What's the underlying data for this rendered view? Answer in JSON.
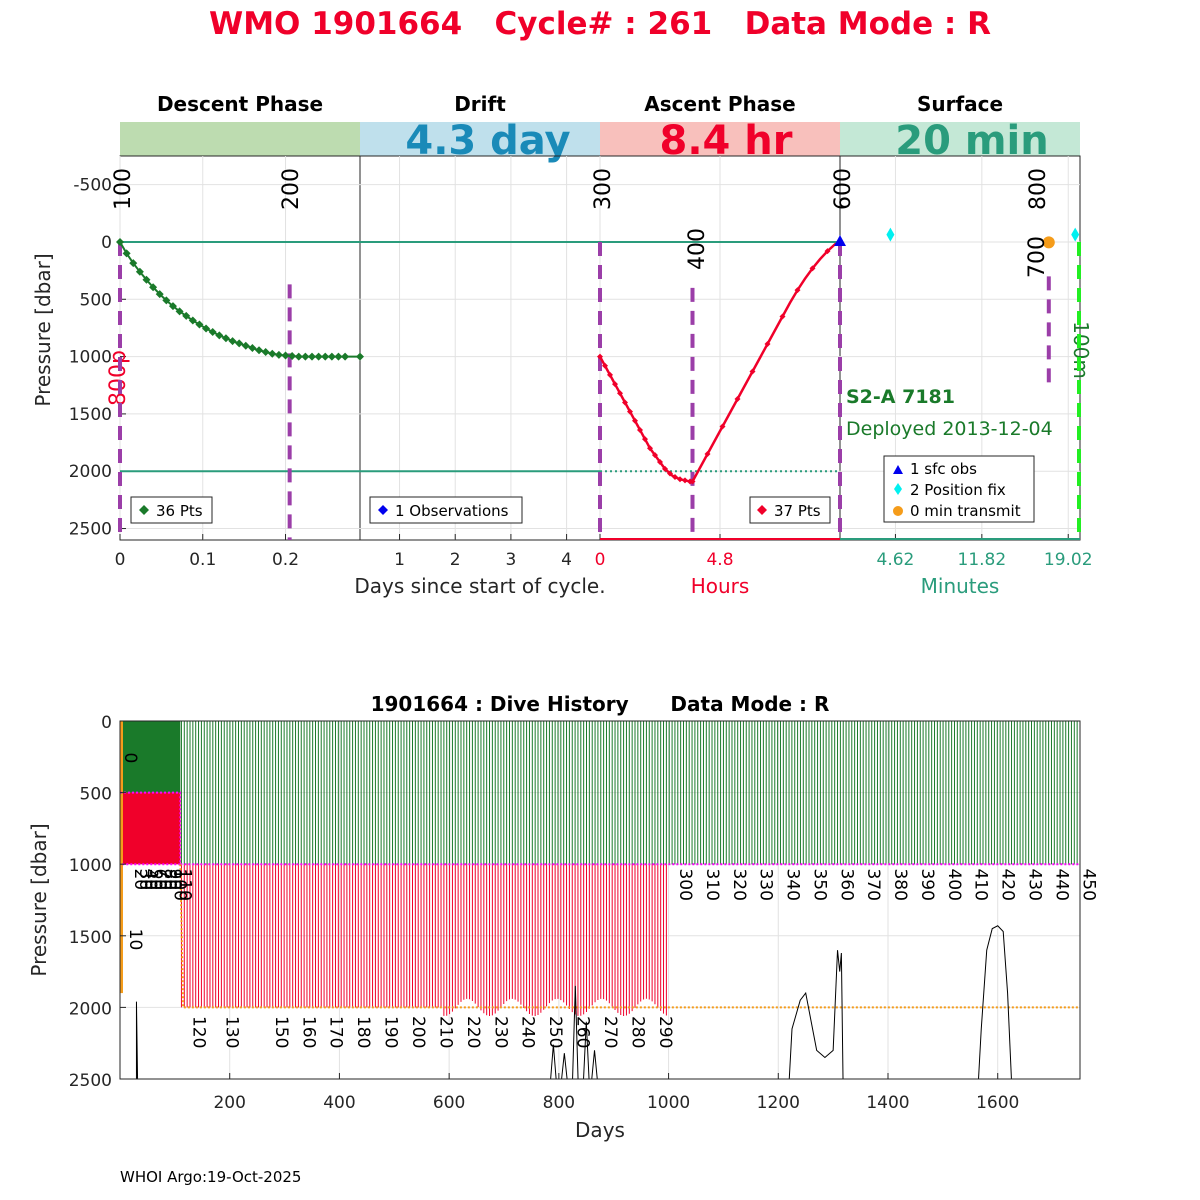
{
  "title": "WMO 1901664   Cycle# : 261   Data Mode : R",
  "footer": "WHOI Argo:19-Oct-2025",
  "colors": {
    "title": "#f0002a",
    "descent": "#1a7a2a",
    "ascent": "#f0002a",
    "phase_line": "#9b3ea8",
    "hline": "#2a9c7c",
    "drift_bar": "#bfe0ec",
    "descent_bar": "#bddcb0",
    "ascent_bar": "#f8c0bc",
    "surface_bar": "#c4e8d6"
  },
  "chart_data": [
    {
      "type": "line",
      "panel": "cycle",
      "ylabel": "Pressure [dbar]",
      "ylim": [
        -750,
        2600
      ],
      "yticks": [
        -500,
        0,
        500,
        1000,
        1500,
        2000,
        2500
      ],
      "reference_lines": [
        0,
        2000
      ],
      "phases": [
        {
          "name": "Descent Phase",
          "duration": "",
          "xlim": [
            0,
            0.29
          ],
          "xticks": [
            0,
            0.1,
            0.2
          ],
          "xtick_labels": [
            "0",
            "0.1",
            "0.2"
          ],
          "legend": "36 Pts",
          "annotations": [
            {
              "x": 0,
              "text": "100"
            },
            {
              "x": 0.205,
              "text": "200"
            }
          ]
        },
        {
          "name": "Drift",
          "duration": "4.3 day",
          "xlim": [
            0.29,
            4.6
          ],
          "xticks": [
            1,
            2,
            3,
            4
          ],
          "xtick_labels": [
            "1",
            "2",
            "3",
            "4"
          ],
          "legend": "1 Observations",
          "annotations": []
        },
        {
          "name": "Ascent Phase",
          "duration": "8.4 hr",
          "xlim": [
            0,
            9.6
          ],
          "xticks": [
            0,
            4.8
          ],
          "xtick_labels": [
            "0",
            "4.8"
          ],
          "legend": "37 Pts",
          "annotations": [
            {
              "x": 0,
              "text": "300"
            },
            {
              "x": 3.7,
              "text": "400"
            },
            {
              "x": 9.6,
              "text": "600"
            }
          ]
        },
        {
          "name": "Surface",
          "duration": "20 min",
          "xlim": [
            0,
            20
          ],
          "xticks": [
            4.62,
            11.82,
            19.02
          ],
          "xtick_labels": [
            "4.62",
            "11.82",
            "19.02"
          ],
          "legend": "",
          "annotations": [
            {
              "x": 17.4,
              "text": "700"
            },
            {
              "x": 17.4,
              "text": "800"
            }
          ]
        }
      ],
      "xlabel_days": "Days since start of cycle.",
      "xlabel_hours": "Hours",
      "xlabel_minutes": "Minutes",
      "side_labels": {
        "left": "800p",
        "right": "100m"
      },
      "float_info": {
        "model": "S2-A 7181",
        "deployed": "Deployed 2013-12-04"
      },
      "surface_legend": [
        "1 sfc obs",
        "2 Position fix",
        "0 min transmit"
      ],
      "descent_series": {
        "x": [
          0,
          0.008,
          0.016,
          0.024,
          0.032,
          0.04,
          0.048,
          0.056,
          0.064,
          0.072,
          0.08,
          0.088,
          0.096,
          0.104,
          0.112,
          0.12,
          0.128,
          0.136,
          0.144,
          0.152,
          0.16,
          0.168,
          0.176,
          0.184,
          0.192,
          0.2,
          0.208,
          0.216,
          0.224,
          0.232,
          0.24,
          0.248,
          0.256,
          0.264,
          0.272,
          0.29
        ],
        "y": [
          0,
          100,
          185,
          260,
          330,
          395,
          455,
          510,
          560,
          605,
          645,
          685,
          720,
          755,
          785,
          815,
          840,
          865,
          885,
          905,
          925,
          945,
          960,
          975,
          985,
          990,
          995,
          1000,
          1000,
          1000,
          1000,
          1000,
          1000,
          1000,
          1000,
          1000
        ]
      },
      "ascent_series": {
        "x": [
          0,
          0.1,
          0.2,
          0.3,
          0.4,
          0.5,
          0.6,
          0.7,
          0.8,
          0.9,
          1.0,
          1.1,
          1.2,
          1.3,
          1.4,
          1.5,
          1.6,
          1.7,
          1.8,
          1.9,
          2.0,
          2.1,
          2.2,
          2.3,
          2.4,
          2.5,
          2.6,
          2.7,
          2.8,
          2.9,
          3.0,
          3.1,
          3.2,
          3.3,
          3.4,
          3.5,
          3.6,
          3.7
        ],
        "y": [
          1000,
          1040,
          1080,
          1120,
          1160,
          1200,
          1240,
          1280,
          1320,
          1360,
          1400,
          1440,
          1480,
          1520,
          1560,
          1600,
          1640,
          1680,
          1720,
          1760,
          1800,
          1830,
          1860,
          1890,
          1920,
          1950,
          1980,
          2000,
          2020,
          2040,
          2050,
          2060,
          2070,
          2075,
          2080,
          2085,
          2090,
          2090
        ]
      },
      "ascent_up": {
        "x": [
          3.7,
          4.0,
          4.3,
          4.6,
          4.9,
          5.2,
          5.5,
          5.8,
          6.1,
          6.4,
          6.7,
          7.0,
          7.3,
          7.6,
          7.9,
          8.2,
          8.5,
          8.8,
          9.1,
          9.4,
          9.6
        ],
        "y": [
          2090,
          1970,
          1850,
          1730,
          1610,
          1490,
          1370,
          1250,
          1130,
          1010,
          890,
          770,
          650,
          530,
          420,
          320,
          230,
          150,
          80,
          20,
          0
        ]
      },
      "surface_points": [
        {
          "x": 9.6,
          "kind": "sfc_obs",
          "p": 0
        },
        {
          "x": 4.2,
          "kind": "position_fix",
          "p": -20
        },
        {
          "x": 19.6,
          "kind": "position_fix",
          "p": -20
        },
        {
          "x": 17.4,
          "kind": "transmit",
          "p": 30
        }
      ]
    },
    {
      "type": "area",
      "panel": "history",
      "title": "1901664 : Dive History      Data Mode : R",
      "xlabel": "Days",
      "ylabel": "Pressure [dbar]",
      "xlim": [
        0,
        1750
      ],
      "ylim": [
        0,
        2500
      ],
      "xticks": [
        200,
        400,
        600,
        800,
        1000,
        1200,
        1400,
        1600
      ],
      "yticks": [
        0,
        500,
        1000,
        1500,
        2000,
        2500
      ],
      "cycle_labels_park": [
        "300",
        "310",
        "320",
        "330",
        "340",
        "350",
        "360",
        "370",
        "380",
        "390",
        "400",
        "410",
        "420",
        "430",
        "440",
        "450"
      ],
      "cycle_labels_deep": [
        "120",
        "130",
        "150",
        "160",
        "170",
        "180",
        "190",
        "200",
        "210",
        "220",
        "230",
        "240",
        "250",
        "260",
        "270",
        "280",
        "290"
      ],
      "cycle_labels_early": [
        "0",
        "10",
        "20",
        "30",
        "40",
        "50",
        "60",
        "70",
        "80",
        "90",
        "100",
        "110"
      ]
    }
  ]
}
